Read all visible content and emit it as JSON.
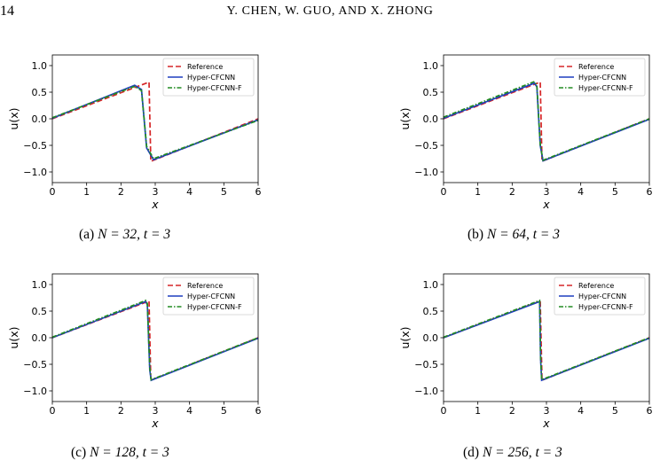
{
  "header": {
    "page_number": "14",
    "running_head": "Y. CHEN, W. GUO, AND X. ZHONG"
  },
  "colors": {
    "reference": "#d62728",
    "hyper_cfcnn": "#1f3fbf",
    "hyper_cfcnn_f": "#228b22"
  },
  "panels": [
    {
      "label": "(a)",
      "caption_math": "N = 32, t = 3"
    },
    {
      "label": "(b)",
      "caption_math": "N = 64, t = 3"
    },
    {
      "label": "(c)",
      "caption_math": "N = 128, t = 3"
    },
    {
      "label": "(d)",
      "caption_math": "N = 256, t = 3"
    }
  ],
  "chart_data": [
    {
      "type": "line",
      "xlabel": "x",
      "ylabel": "u(x)",
      "xlim": [
        0,
        6
      ],
      "ylim": [
        -1.2,
        1.2
      ],
      "xticks": [
        "0",
        "1",
        "2",
        "3",
        "4",
        "5",
        "6"
      ],
      "yticks": [
        "1.0",
        "0.5",
        "0.0",
        "-0.5",
        "-1.0"
      ],
      "legend_position": "top-right",
      "series": [
        {
          "name": "Reference",
          "style": "dashed",
          "x": [
            0,
            2.82,
            2.87,
            6
          ],
          "y": [
            0,
            0.69,
            -0.8,
            0
          ]
        },
        {
          "name": "Hyper-CFCNN",
          "style": "solid",
          "x": [
            0,
            2.4,
            2.6,
            2.75,
            2.95,
            6
          ],
          "y": [
            0.01,
            0.63,
            0.55,
            -0.55,
            -0.77,
            -0.02
          ]
        },
        {
          "name": "Hyper-CFCNN-F",
          "style": "dashdot",
          "x": [
            0,
            2.4,
            2.6,
            2.75,
            2.95,
            6
          ],
          "y": [
            0.02,
            0.61,
            0.53,
            -0.52,
            -0.75,
            -0.03
          ]
        }
      ]
    },
    {
      "type": "line",
      "xlabel": "x",
      "ylabel": "u(x)",
      "xlim": [
        0,
        6
      ],
      "ylim": [
        -1.2,
        1.2
      ],
      "xticks": [
        "0",
        "1",
        "2",
        "3",
        "4",
        "5",
        "6"
      ],
      "yticks": [
        "1.0",
        "0.5",
        "0.0",
        "-0.5",
        "-1.0"
      ],
      "legend_position": "top-right",
      "series": [
        {
          "name": "Reference",
          "style": "dashed",
          "x": [
            0,
            2.82,
            2.87,
            6
          ],
          "y": [
            0,
            0.69,
            -0.8,
            0
          ]
        },
        {
          "name": "Hyper-CFCNN",
          "style": "solid",
          "x": [
            0,
            2.65,
            2.72,
            2.82,
            2.9,
            6
          ],
          "y": [
            0.01,
            0.67,
            0.6,
            -0.5,
            -0.79,
            -0.01
          ]
        },
        {
          "name": "Hyper-CFCNN-F",
          "style": "dashdot",
          "x": [
            0,
            2.65,
            2.72,
            2.82,
            2.9,
            6
          ],
          "y": [
            0.03,
            0.7,
            0.62,
            -0.48,
            -0.78,
            0
          ]
        }
      ]
    },
    {
      "type": "line",
      "xlabel": "x",
      "ylabel": "u(x)",
      "xlim": [
        0,
        6
      ],
      "ylim": [
        -1.2,
        1.2
      ],
      "xticks": [
        "0",
        "1",
        "2",
        "3",
        "4",
        "5",
        "6"
      ],
      "yticks": [
        "1.0",
        "0.5",
        "0.0",
        "-0.5",
        "-1.0"
      ],
      "legend_position": "top-right",
      "series": [
        {
          "name": "Reference",
          "style": "dashed",
          "x": [
            0,
            2.82,
            2.87,
            6
          ],
          "y": [
            0,
            0.69,
            -0.8,
            0
          ]
        },
        {
          "name": "Hyper-CFCNN",
          "style": "solid",
          "x": [
            0,
            2.72,
            2.77,
            2.84,
            2.88,
            6
          ],
          "y": [
            0,
            0.68,
            0.62,
            -0.6,
            -0.8,
            -0.01
          ]
        },
        {
          "name": "Hyper-CFCNN-F",
          "style": "dashdot",
          "x": [
            0,
            2.72,
            2.77,
            2.84,
            2.88,
            6
          ],
          "y": [
            0.01,
            0.7,
            0.64,
            -0.55,
            -0.79,
            0
          ]
        }
      ]
    },
    {
      "type": "line",
      "xlabel": "x",
      "ylabel": "u(x)",
      "xlim": [
        0,
        6
      ],
      "ylim": [
        -1.2,
        1.2
      ],
      "xticks": [
        "0",
        "1",
        "2",
        "3",
        "4",
        "5",
        "6"
      ],
      "yticks": [
        "1.0",
        "0.5",
        "0.0",
        "-0.5",
        "-1.0"
      ],
      "legend_position": "top-right",
      "series": [
        {
          "name": "Reference",
          "style": "dashed",
          "x": [
            0,
            2.82,
            2.87,
            6
          ],
          "y": [
            0,
            0.69,
            -0.8,
            0
          ]
        },
        {
          "name": "Hyper-CFCNN",
          "style": "solid",
          "x": [
            0,
            2.8,
            2.83,
            2.86,
            6
          ],
          "y": [
            0,
            0.68,
            -0.4,
            -0.8,
            -0.01
          ]
        },
        {
          "name": "Hyper-CFCNN-F",
          "style": "dashdot",
          "x": [
            0,
            2.8,
            2.83,
            2.86,
            6
          ],
          "y": [
            0.01,
            0.7,
            -0.35,
            -0.79,
            0
          ]
        }
      ]
    }
  ]
}
